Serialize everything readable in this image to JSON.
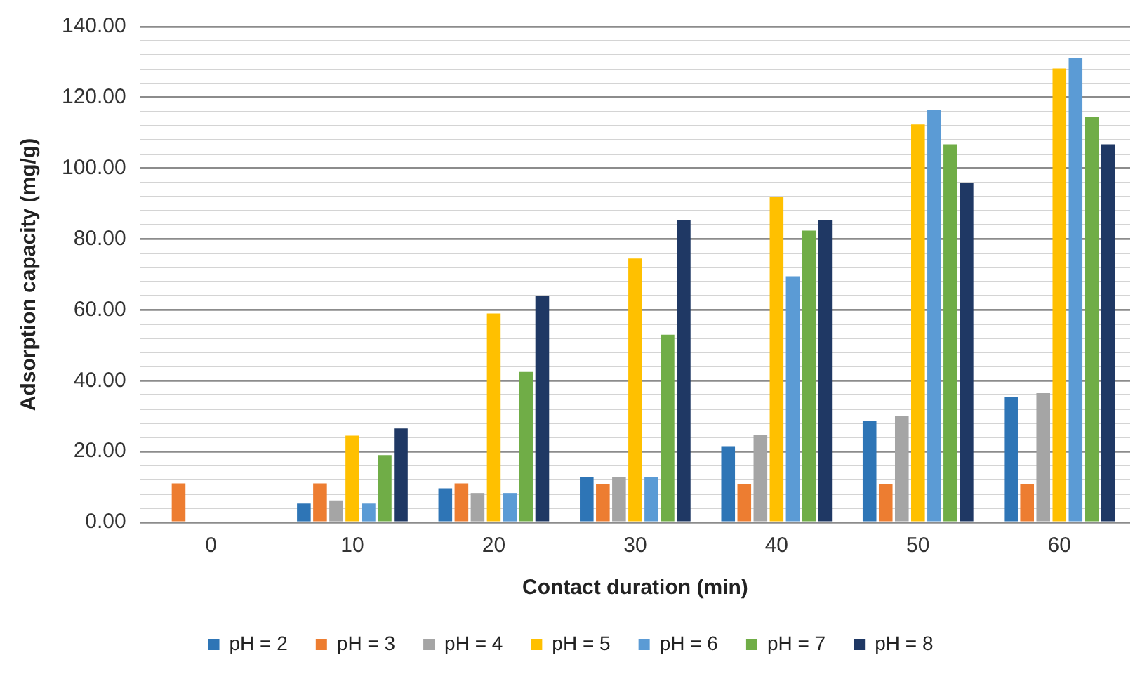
{
  "chart_data": {
    "type": "bar",
    "xlabel": "Contact duration (min)",
    "ylabel": "Adsorption capacity (mg/g)",
    "categories": [
      "0",
      "10",
      "20",
      "30",
      "40",
      "50",
      "60"
    ],
    "series": [
      {
        "name": "pH = 2",
        "color": "#2e75b6",
        "values": [
          0,
          5.3,
          9.6,
          12.8,
          21.5,
          28.6,
          35.5
        ]
      },
      {
        "name": "pH = 3",
        "color": "#ed7d31",
        "values": [
          11,
          11,
          11,
          10.8,
          10.8,
          10.8,
          10.8
        ]
      },
      {
        "name": "pH = 4",
        "color": "#a5a5a5",
        "values": [
          0,
          6.2,
          8.3,
          12.8,
          24.6,
          30,
          36.5
        ]
      },
      {
        "name": "pH = 5",
        "color": "#ffc000",
        "values": [
          0,
          24.5,
          59,
          74.5,
          92,
          112.4,
          128.2
        ]
      },
      {
        "name": "pH = 6",
        "color": "#5b9bd5",
        "values": [
          0,
          5.3,
          8.3,
          12.8,
          69.5,
          116.5,
          131.2
        ]
      },
      {
        "name": "pH = 7",
        "color": "#70ad47",
        "values": [
          0,
          19,
          42.5,
          53,
          82.4,
          106.8,
          114.5
        ]
      },
      {
        "name": "pH = 8",
        "color": "#1f3864",
        "values": [
          0,
          26.5,
          64,
          85.3,
          85.3,
          96,
          106.8
        ]
      }
    ],
    "ylim": [
      0,
      140
    ],
    "yticks": [
      {
        "value": 0,
        "label": "0.00"
      },
      {
        "value": 4,
        "label": null
      },
      {
        "value": 8,
        "label": null
      },
      {
        "value": 12,
        "label": null
      },
      {
        "value": 16,
        "label": null
      },
      {
        "value": 20,
        "label": "20.00"
      },
      {
        "value": 24,
        "label": null
      },
      {
        "value": 28,
        "label": null
      },
      {
        "value": 32,
        "label": null
      },
      {
        "value": 36,
        "label": null
      },
      {
        "value": 40,
        "label": "40.00"
      },
      {
        "value": 44,
        "label": null
      },
      {
        "value": 48,
        "label": null
      },
      {
        "value": 52,
        "label": null
      },
      {
        "value": 56,
        "label": null
      },
      {
        "value": 60,
        "label": "60.00"
      },
      {
        "value": 64,
        "label": null
      },
      {
        "value": 68,
        "label": null
      },
      {
        "value": 72,
        "label": null
      },
      {
        "value": 76,
        "label": null
      },
      {
        "value": 80,
        "label": "80.00"
      },
      {
        "value": 84,
        "label": null
      },
      {
        "value": 88,
        "label": null
      },
      {
        "value": 92,
        "label": null
      },
      {
        "value": 96,
        "label": null
      },
      {
        "value": 100,
        "label": "100.00"
      },
      {
        "value": 104,
        "label": null
      },
      {
        "value": 108,
        "label": null
      },
      {
        "value": 112,
        "label": null
      },
      {
        "value": 116,
        "label": null
      },
      {
        "value": 120,
        "label": "120.00"
      },
      {
        "value": 124,
        "label": null
      },
      {
        "value": 128,
        "label": null
      },
      {
        "value": 132,
        "label": null
      },
      {
        "value": 136,
        "label": null
      },
      {
        "value": 140,
        "label": "140.00"
      }
    ],
    "grid": "y",
    "legend": "bottom"
  }
}
